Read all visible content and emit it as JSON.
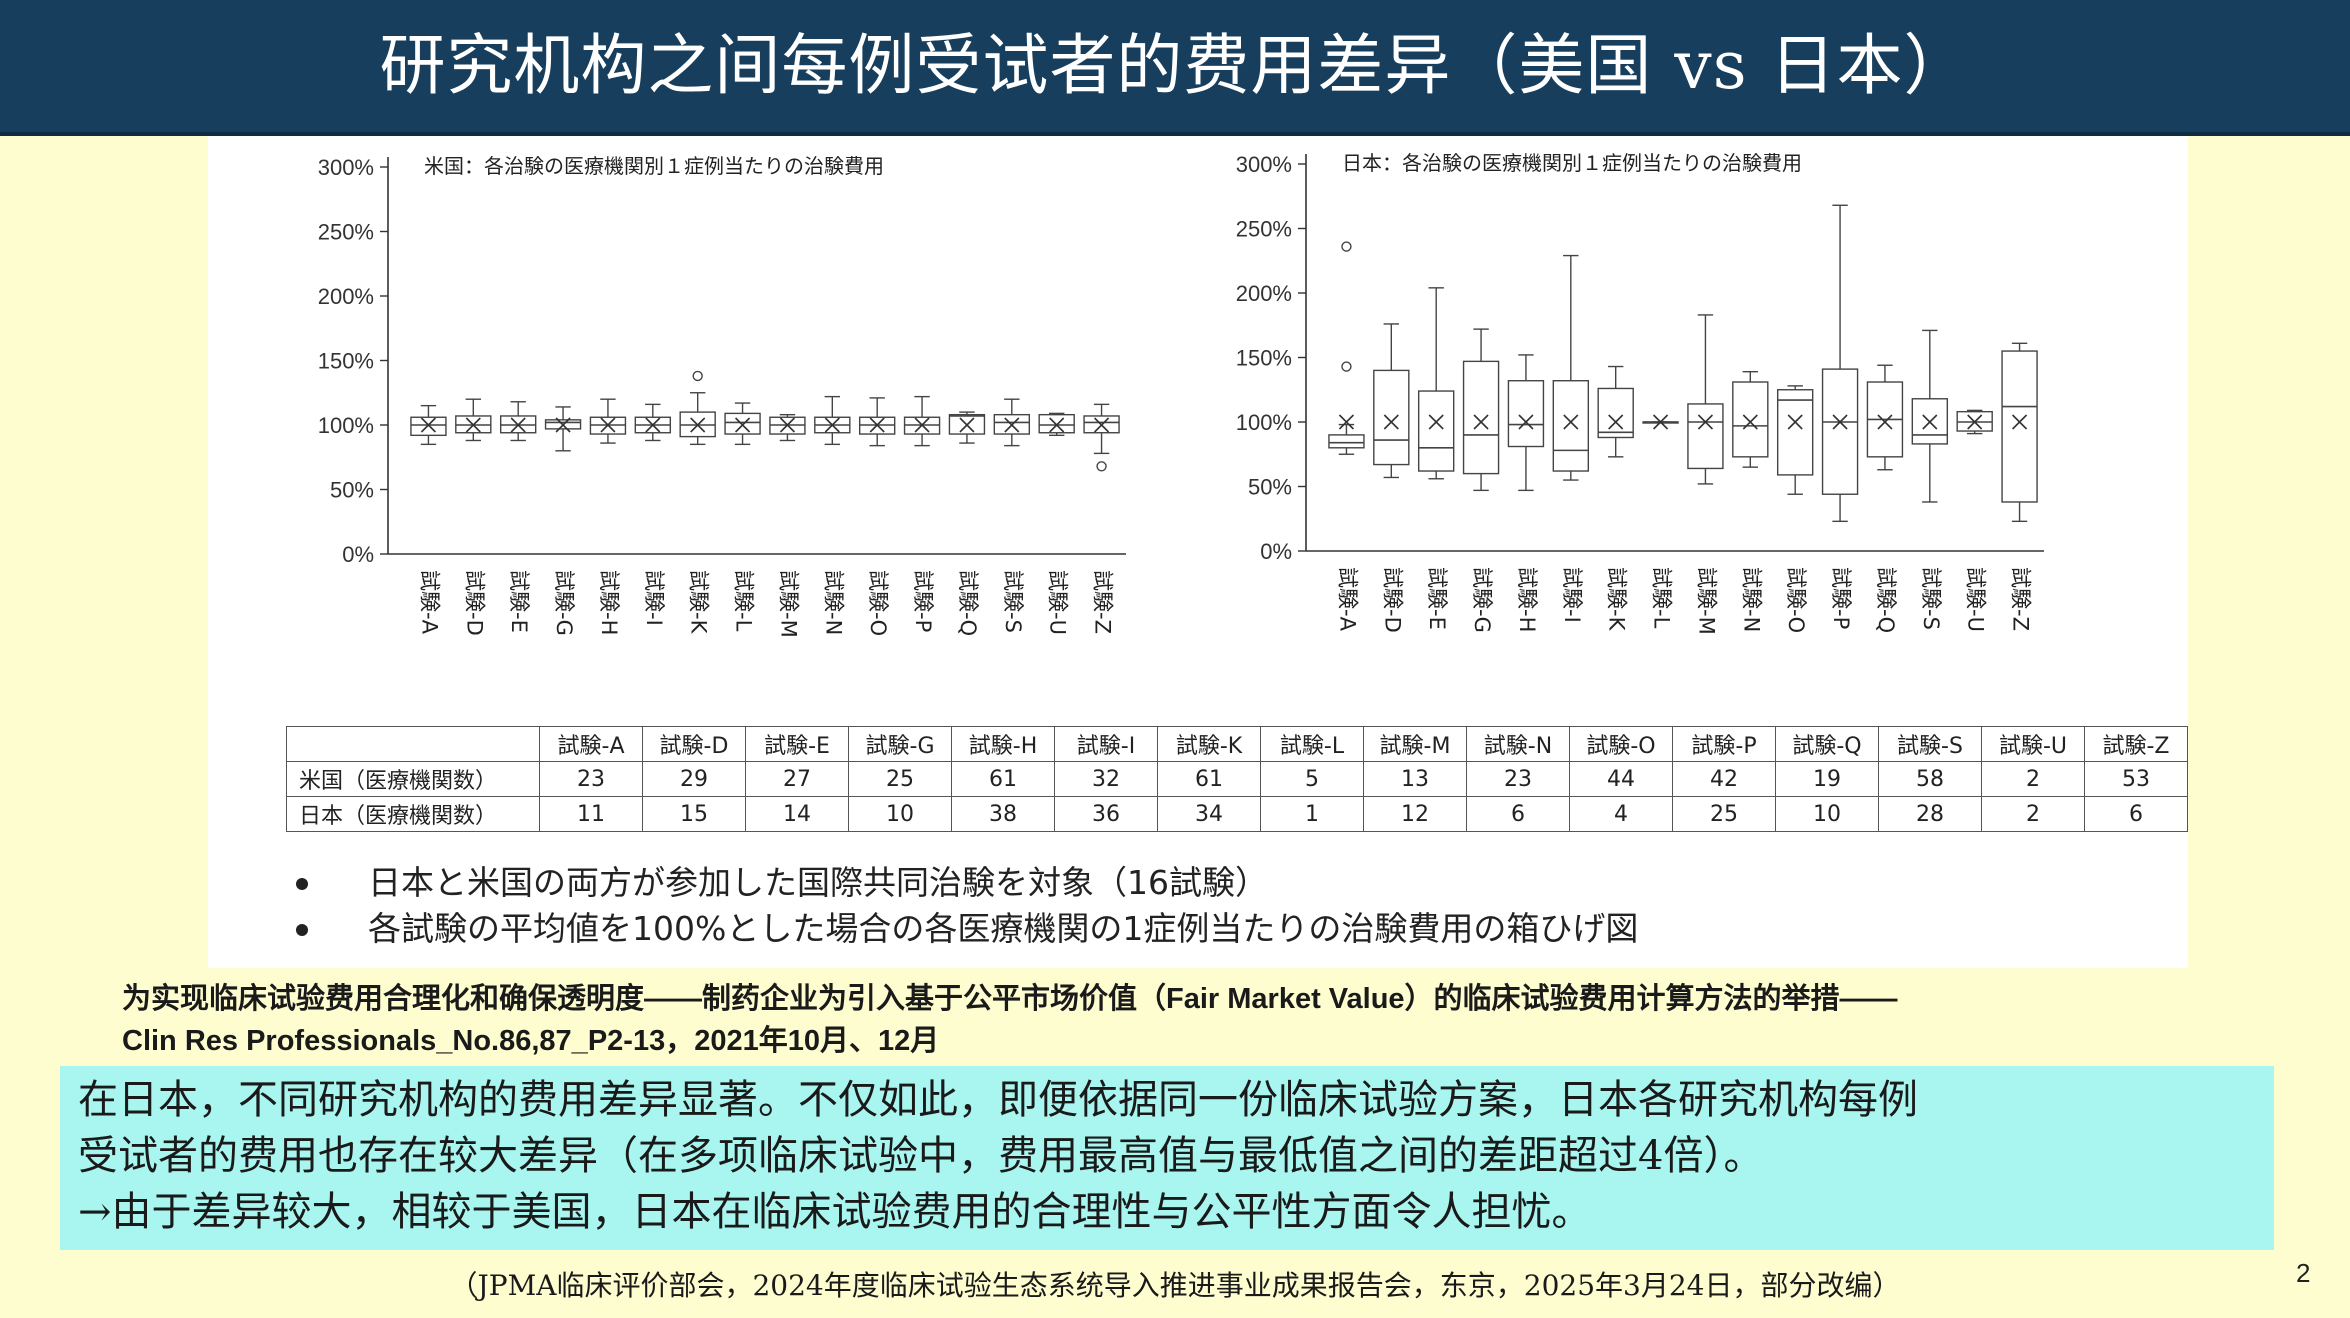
{
  "header": {
    "title": "研究机构之间每例受试者的费用差异（美国 vs 日本）"
  },
  "chart_data": [
    {
      "type": "box",
      "title": "米国：各治験の医療機関別１症例当たりの治験費用",
      "ylim": [
        0,
        300
      ],
      "yticks": [
        "300%",
        "250%",
        "200%",
        "150%",
        "100%",
        "50%",
        "0%"
      ],
      "categories": [
        "試験-A",
        "試験-D",
        "試験-E",
        "試験-G",
        "試験-H",
        "試験-I",
        "試験-K",
        "試験-L",
        "試験-M",
        "試験-N",
        "試験-O",
        "試験-P",
        "試験-Q",
        "試験-S",
        "試験-U",
        "試験-Z"
      ],
      "boxes": [
        {
          "min": 85,
          "q1": 92,
          "median": 100,
          "q3": 106,
          "max": 115,
          "mean": 100,
          "outliers": []
        },
        {
          "min": 88,
          "q1": 94,
          "median": 100,
          "q3": 107,
          "max": 120,
          "mean": 100,
          "outliers": []
        },
        {
          "min": 88,
          "q1": 94,
          "median": 100,
          "q3": 107,
          "max": 118,
          "mean": 100,
          "outliers": []
        },
        {
          "min": 80,
          "q1": 97,
          "median": 102,
          "q3": 104,
          "max": 114,
          "mean": 100,
          "outliers": []
        },
        {
          "min": 86,
          "q1": 93,
          "median": 100,
          "q3": 106,
          "max": 120,
          "mean": 100,
          "outliers": []
        },
        {
          "min": 88,
          "q1": 94,
          "median": 100,
          "q3": 106,
          "max": 116,
          "mean": 100,
          "outliers": []
        },
        {
          "min": 85,
          "q1": 91,
          "median": 100,
          "q3": 110,
          "max": 125,
          "mean": 100,
          "outliers": [
            138
          ]
        },
        {
          "min": 85,
          "q1": 93,
          "median": 102,
          "q3": 109,
          "max": 117,
          "mean": 100,
          "outliers": []
        },
        {
          "min": 88,
          "q1": 93,
          "median": 100,
          "q3": 106,
          "max": 108,
          "mean": 100,
          "outliers": []
        },
        {
          "min": 85,
          "q1": 94,
          "median": 100,
          "q3": 106,
          "max": 122,
          "mean": 100,
          "outliers": []
        },
        {
          "min": 84,
          "q1": 93,
          "median": 100,
          "q3": 106,
          "max": 121,
          "mean": 100,
          "outliers": []
        },
        {
          "min": 84,
          "q1": 93,
          "median": 100,
          "q3": 106,
          "max": 122,
          "mean": 100,
          "outliers": []
        },
        {
          "min": 86,
          "q1": 93,
          "median": 107,
          "q3": 108,
          "max": 110,
          "mean": 100,
          "outliers": []
        },
        {
          "min": 84,
          "q1": 93,
          "median": 102,
          "q3": 108,
          "max": 120,
          "mean": 100,
          "outliers": []
        },
        {
          "min": 92,
          "q1": 94,
          "median": 100,
          "q3": 108,
          "max": 109,
          "mean": 100,
          "outliers": []
        },
        {
          "min": 78,
          "q1": 94,
          "median": 102,
          "q3": 107,
          "max": 116,
          "mean": 100,
          "outliers": [
            68
          ]
        }
      ]
    },
    {
      "type": "box",
      "title": "日本：各治験の医療機関別１症例当たりの治験費用",
      "ylim": [
        0,
        300
      ],
      "yticks": [
        "300%",
        "250%",
        "200%",
        "150%",
        "100%",
        "50%",
        "0%"
      ],
      "categories": [
        "試験-A",
        "試験-D",
        "試験-E",
        "試験-G",
        "試験-H",
        "試験-I",
        "試験-K",
        "試験-L",
        "試験-M",
        "試験-N",
        "試験-O",
        "試験-P",
        "試験-Q",
        "試験-S",
        "試験-U",
        "試験-Z"
      ],
      "boxes": [
        {
          "min": 75,
          "q1": 80,
          "median": 84,
          "q3": 90,
          "max": 98,
          "mean": 100,
          "outliers": [
            143,
            236
          ]
        },
        {
          "min": 57,
          "q1": 67,
          "median": 86,
          "q3": 140,
          "max": 176,
          "mean": 100,
          "outliers": []
        },
        {
          "min": 56,
          "q1": 62,
          "median": 80,
          "q3": 124,
          "max": 204,
          "mean": 100,
          "outliers": []
        },
        {
          "min": 47,
          "q1": 60,
          "median": 90,
          "q3": 147,
          "max": 172,
          "mean": 100,
          "outliers": []
        },
        {
          "min": 47,
          "q1": 81,
          "median": 98,
          "q3": 132,
          "max": 152,
          "mean": 100,
          "outliers": []
        },
        {
          "min": 55,
          "q1": 62,
          "median": 78,
          "q3": 132,
          "max": 229,
          "mean": 100,
          "outliers": []
        },
        {
          "min": 73,
          "q1": 88,
          "median": 92,
          "q3": 126,
          "max": 143,
          "mean": 100,
          "outliers": []
        },
        {
          "min": 100,
          "q1": 100,
          "median": 100,
          "q3": 100,
          "max": 100,
          "mean": 100,
          "outliers": []
        },
        {
          "min": 52,
          "q1": 64,
          "median": 100,
          "q3": 114,
          "max": 183,
          "mean": 100,
          "outliers": []
        },
        {
          "min": 65,
          "q1": 73,
          "median": 97,
          "q3": 131,
          "max": 139,
          "mean": 100,
          "outliers": []
        },
        {
          "min": 44,
          "q1": 59,
          "median": 117,
          "q3": 125,
          "max": 128,
          "mean": 100,
          "outliers": []
        },
        {
          "min": 23,
          "q1": 44,
          "median": 100,
          "q3": 141,
          "max": 268,
          "mean": 100,
          "outliers": []
        },
        {
          "min": 63,
          "q1": 73,
          "median": 102,
          "q3": 131,
          "max": 144,
          "mean": 100,
          "outliers": []
        },
        {
          "min": 38,
          "q1": 83,
          "median": 90,
          "q3": 118,
          "max": 171,
          "mean": 100,
          "outliers": []
        },
        {
          "min": 91,
          "q1": 93,
          "median": 100,
          "q3": 108,
          "max": 109,
          "mean": 100,
          "outliers": []
        },
        {
          "min": 23,
          "q1": 38,
          "median": 112,
          "q3": 155,
          "max": 161,
          "mean": 100,
          "outliers": []
        }
      ]
    }
  ],
  "table": {
    "columns": [
      "試験-A",
      "試験-D",
      "試験-E",
      "試験-G",
      "試験-H",
      "試験-I",
      "試験-K",
      "試験-L",
      "試験-M",
      "試験-N",
      "試験-O",
      "試験-P",
      "試験-Q",
      "試験-S",
      "試験-U",
      "試験-Z"
    ],
    "rows": [
      {
        "label": "米国（医療機関数）",
        "values": [
          "23",
          "29",
          "27",
          "25",
          "61",
          "32",
          "61",
          "5",
          "13",
          "23",
          "44",
          "42",
          "19",
          "58",
          "2",
          "53"
        ]
      },
      {
        "label": "日本（医療機関数）",
        "values": [
          "11",
          "15",
          "14",
          "10",
          "38",
          "36",
          "34",
          "1",
          "12",
          "6",
          "4",
          "25",
          "10",
          "28",
          "2",
          "6"
        ]
      }
    ]
  },
  "notes": [
    "日本と米国の両方が参加した国際共同治験を対象（16試験）",
    "各試験の平均値を100%とした場合の各医療機関の1症例当たりの治験費用の箱ひげ図"
  ],
  "citation": {
    "line1": "为实现临床试验费用合理化和确保透明度——制药企业为引入基于公平市场价值（Fair Market Value）的临床试验费用计算方法的举措——",
    "line2": "Clin Res Professionals_No.86,87_P2-13，2021年10月、12月"
  },
  "summary": {
    "line1": "在日本，不同研究机构的费用差异显著。不仅如此，即便依据同一份临床试验方案，日本各研究机构每例",
    "line2": "受试者的费用也存在较大差异（在多项临床试验中，费用最高值与最低值之间的差距超过4倍）。",
    "line3": "→由于差异较大，相较于美国，日本在临床试验费用的合理性与公平性方面令人担忧。"
  },
  "source_note": "（JPMA临床评价部会，2024年度临床试验生态系统导入推进事业成果报告会，东京，2025年3月24日，部分改编）",
  "page_number": "2"
}
